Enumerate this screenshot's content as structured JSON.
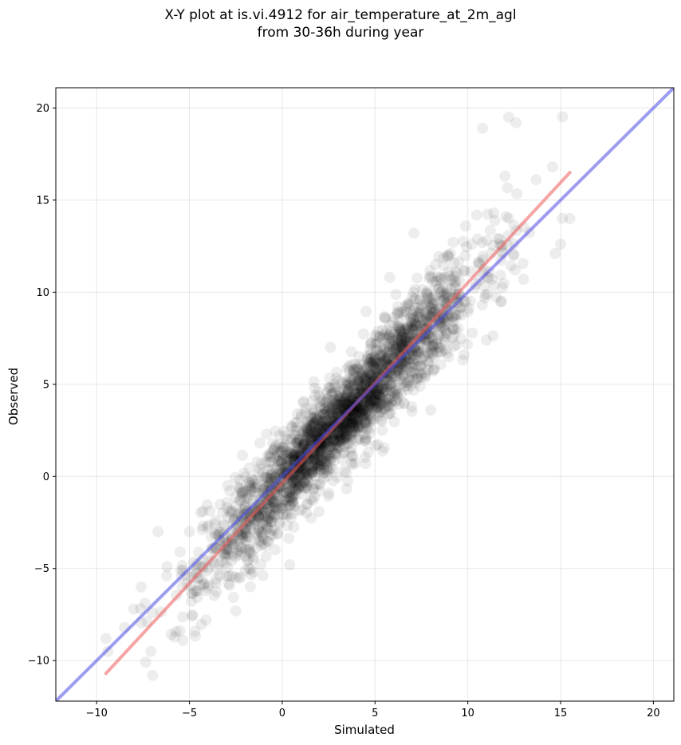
{
  "title_line1": "X-Y plot at is.vi.4912 for air_temperature_at_2m_agl",
  "title_line2": "from 30-36h during year",
  "chart_data": {
    "type": "scatter",
    "title": "X-Y plot at is.vi.4912 for air_temperature_at_2m_agl\nfrom 30-36h during year",
    "xlabel": "Simulated",
    "ylabel": "Observed",
    "xlim": [
      -12.2,
      21.1
    ],
    "ylim": [
      -12.2,
      21.1
    ],
    "xticks": [
      -10,
      -5,
      0,
      5,
      10,
      15,
      20
    ],
    "yticks": [
      -10,
      -5,
      0,
      5,
      10,
      15,
      20
    ],
    "xtick_labels": [
      "−10",
      "−5",
      "0",
      "5",
      "10",
      "15",
      "20"
    ],
    "ytick_labels": [
      "−10",
      "−5",
      "0",
      "5",
      "10",
      "15",
      "20"
    ],
    "grid": true,
    "point_color": "#000000",
    "point_alpha": 0.07,
    "reference_line": {
      "kind": "1:1",
      "color": "#4a4ae6",
      "x": [
        -12.2,
        21.1
      ],
      "y": [
        -12.2,
        21.1
      ]
    },
    "fit_line": {
      "kind": "regression",
      "color": "#ee5a5a",
      "x": [
        -9.5,
        15.5
      ],
      "y": [
        -10.7,
        16.5
      ]
    },
    "points_sample": [
      [
        -9.5,
        -8.8
      ],
      [
        -9.4,
        -9.5
      ],
      [
        -8.5,
        -8.2
      ],
      [
        -8.0,
        -7.2
      ],
      [
        -7.6,
        -6.0
      ],
      [
        -7.0,
        -7.4
      ],
      [
        -6.7,
        -3.0
      ],
      [
        -6.2,
        -4.9
      ],
      [
        -5.5,
        -4.1
      ],
      [
        -5.0,
        -3.0
      ],
      [
        -4.7,
        -8.4
      ],
      [
        -4.5,
        -5.5
      ],
      [
        -3.6,
        -2.4
      ],
      [
        -3.0,
        -4.0
      ],
      [
        -2.5,
        -7.3
      ],
      [
        -2.2,
        -1.1
      ],
      [
        -1.6,
        -1.9
      ],
      [
        -1.0,
        -0.1
      ],
      [
        -0.5,
        1.8
      ],
      [
        0.0,
        -1.3
      ],
      [
        0.4,
        -4.8
      ],
      [
        0.9,
        0.8
      ],
      [
        1.5,
        2.6
      ],
      [
        2.0,
        1.5
      ],
      [
        2.6,
        7.0
      ],
      [
        3.0,
        2.0
      ],
      [
        3.5,
        4.4
      ],
      [
        4.0,
        3.2
      ],
      [
        4.5,
        0.7
      ],
      [
        4.9,
        6.0
      ],
      [
        5.3,
        4.3
      ],
      [
        5.8,
        10.8
      ],
      [
        6.2,
        6.5
      ],
      [
        6.8,
        5.4
      ],
      [
        7.1,
        13.2
      ],
      [
        7.5,
        7.5
      ],
      [
        8.0,
        3.6
      ],
      [
        8.4,
        8.5
      ],
      [
        8.9,
        12.0
      ],
      [
        9.3,
        9.9
      ],
      [
        9.8,
        6.6
      ],
      [
        10.2,
        12.6
      ],
      [
        10.8,
        18.9
      ],
      [
        11.0,
        7.4
      ],
      [
        11.4,
        14.3
      ],
      [
        12.0,
        16.3
      ],
      [
        12.2,
        19.5
      ],
      [
        12.6,
        19.2
      ],
      [
        13.0,
        10.7
      ],
      [
        14.7,
        12.1
      ],
      [
        15.0,
        12.6
      ],
      [
        15.5,
        14.0
      ]
    ]
  }
}
